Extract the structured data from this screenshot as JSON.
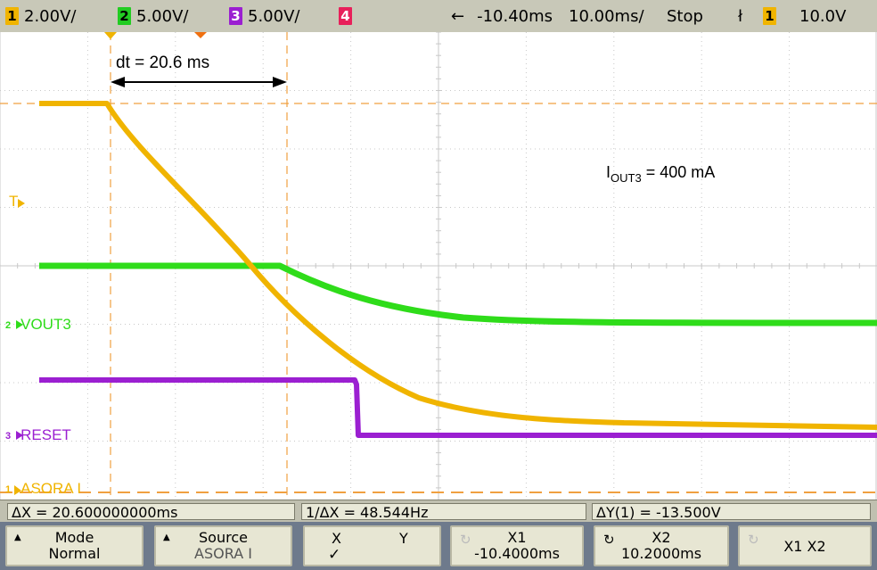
{
  "topbar": {
    "ch1": {
      "num": "1",
      "scale": "2.00V/",
      "color": "#f0b400"
    },
    "ch2": {
      "num": "2",
      "scale": "5.00V/",
      "color": "#22cc22"
    },
    "ch3": {
      "num": "3",
      "scale": "5.00V/",
      "color": "#9b1fd1"
    },
    "ch4": {
      "num": "4",
      "color": "#e8205a"
    },
    "delay_arrow": "←",
    "delay": "-10.40ms",
    "timebase": "10.00ms/",
    "run_state": "Stop",
    "trigger_icon": "ł",
    "trigger_ch": "1",
    "trigger_level": "10.0V"
  },
  "annotations": {
    "dt": "dt = 20.6 ms",
    "iout_main": "I",
    "iout_sub": "OUT3",
    "iout_value": " = 400 mA"
  },
  "channel_labels": {
    "ch2": {
      "num": "2",
      "name": "VOUT3"
    },
    "ch3": {
      "num": "3",
      "name": "RESET"
    },
    "ch1": {
      "num": "1",
      "name": "ASORA I"
    },
    "trigger_marker": "T"
  },
  "measurements": {
    "delta_x": "ΔX = 20.600000000ms",
    "inv_delta_x": "1/ΔX = 48.544Hz",
    "delta_y": "ΔY(1) = -13.500V"
  },
  "softkeys": {
    "mode": {
      "line1": "Mode",
      "line2": "Normal"
    },
    "source": {
      "line1": "Source",
      "line2": "ASORA I"
    },
    "xy": {
      "x": "X",
      "y": "Y",
      "check": "✓"
    },
    "x1": {
      "line1": "X1",
      "line2": "-10.4000ms"
    },
    "x2": {
      "line1": "X2",
      "line2": "10.2000ms"
    },
    "x1x2": {
      "label": "X1 X2"
    }
  },
  "colors": {
    "ch1_trace": "#f0b400",
    "ch2_trace": "#2fdc1a",
    "ch3_trace": "#9b1fd1",
    "grid": "#c8c8c8",
    "cursor": "#f0a040"
  }
}
